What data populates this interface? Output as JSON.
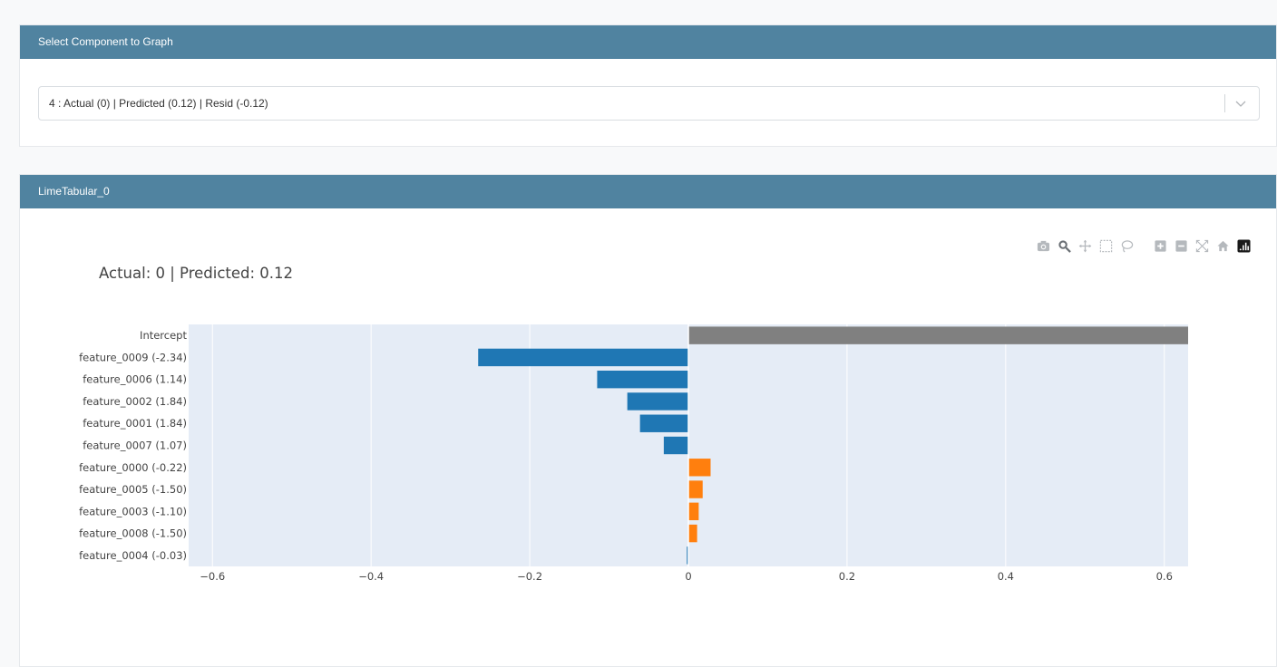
{
  "select_panel": {
    "header": "Select Component to Graph",
    "selected_value": "4 : Actual (0) | Predicted (0.12) | Resid (-0.12)"
  },
  "chart_panel": {
    "header": "LimeTabular_0"
  },
  "modebar": [
    "camera-icon",
    "zoom-icon",
    "pan-icon",
    "box-select-icon",
    "lasso-icon",
    "zoom-in-icon",
    "zoom-out-icon",
    "autoscale-icon",
    "reset-axes-icon",
    "plotly-logo-icon"
  ],
  "chart_data": {
    "type": "bar",
    "orientation": "horizontal",
    "title": "Actual: 0 | Predicted: 0.12",
    "xlabel": "",
    "ylabel": "",
    "categories": [
      "Intercept",
      "feature_0009 (-2.34)",
      "feature_0006 (1.14)",
      "feature_0002 (1.84)",
      "feature_0001 (1.84)",
      "feature_0007 (1.07)",
      "feature_0000 (-0.22)",
      "feature_0005 (-1.50)",
      "feature_0003 (-1.10)",
      "feature_0008 (-1.50)",
      "feature_0004 (-0.03)"
    ],
    "values": [
      0.63,
      -0.265,
      -0.115,
      -0.077,
      -0.061,
      -0.031,
      0.028,
      0.018,
      0.013,
      0.011,
      -0.002
    ],
    "bar_colors": [
      "#808080",
      "#1f77b4",
      "#1f77b4",
      "#1f77b4",
      "#1f77b4",
      "#1f77b4",
      "#ff7f0e",
      "#ff7f0e",
      "#ff7f0e",
      "#ff7f0e",
      "#1f77b4"
    ],
    "xlim": [
      -0.63,
      0.63
    ],
    "xticks": [
      -0.6,
      -0.4,
      -0.2,
      0,
      0.2,
      0.4,
      0.6
    ],
    "xtick_labels": [
      "−0.6",
      "−0.4",
      "−0.2",
      "0",
      "0.2",
      "0.4",
      "0.6"
    ],
    "grid": true,
    "plot_bg": "#e5ecf6"
  },
  "colors": {
    "header_bg": "#5083a0",
    "negative": "#1f77b4",
    "positive": "#ff7f0e",
    "intercept": "#808080"
  }
}
